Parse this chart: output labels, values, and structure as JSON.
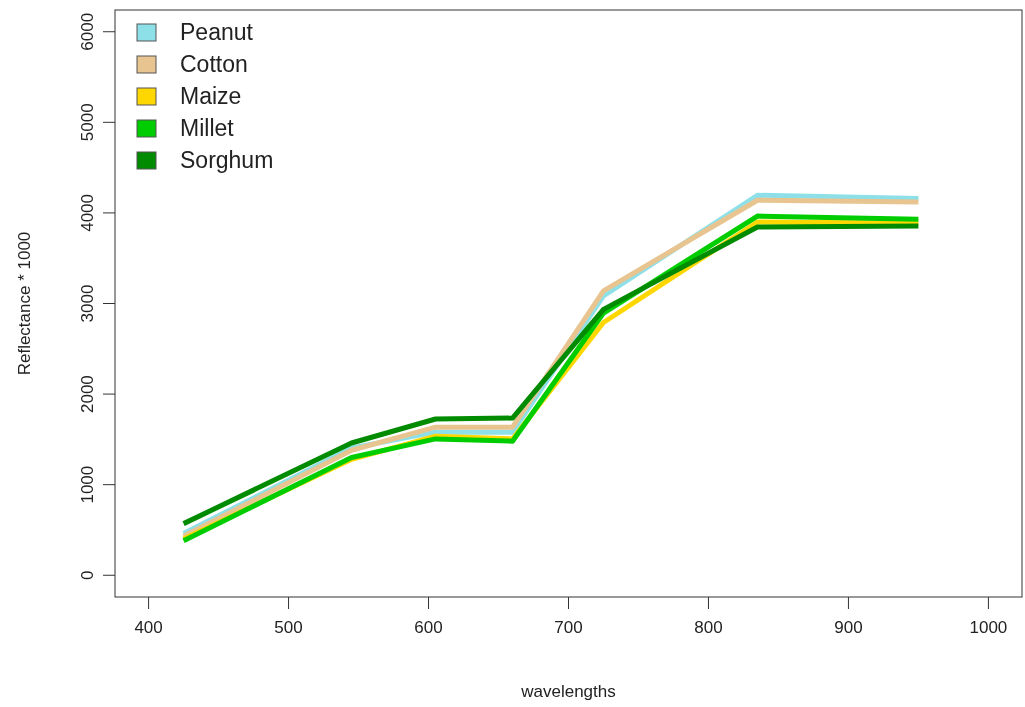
{
  "chart_data": {
    "type": "line",
    "xlabel": "wavelengths",
    "ylabel": "Reflectance * 1000",
    "xlim": [
      376,
      1024
    ],
    "ylim": [
      -240,
      6240
    ],
    "xticks": [
      400,
      500,
      600,
      700,
      800,
      900,
      1000
    ],
    "yticks": [
      0,
      1000,
      2000,
      3000,
      4000,
      5000,
      6000
    ],
    "x": [
      425,
      545,
      605,
      660,
      725,
      835,
      950
    ],
    "legend": "top left",
    "line_style": "solid",
    "marker": "none",
    "grid": false,
    "series": [
      {
        "name": "Peanut",
        "color": "#8ee0e8",
        "values": [
          460,
          1405,
          1580,
          1580,
          3085,
          4195,
          4160
        ]
      },
      {
        "name": "Cotton",
        "color": "#e8c490",
        "values": [
          430,
          1380,
          1635,
          1635,
          3140,
          4140,
          4120
        ]
      },
      {
        "name": "Maize",
        "color": "#ffd700",
        "values": [
          400,
          1280,
          1535,
          1505,
          2790,
          3900,
          3885
        ]
      },
      {
        "name": "Millet",
        "color": "#00cd00",
        "values": [
          380,
          1300,
          1505,
          1480,
          2895,
          3965,
          3930
        ]
      },
      {
        "name": "Sorghum",
        "color": "#008b00",
        "values": [
          570,
          1460,
          1725,
          1735,
          2935,
          3845,
          3855
        ]
      }
    ]
  }
}
